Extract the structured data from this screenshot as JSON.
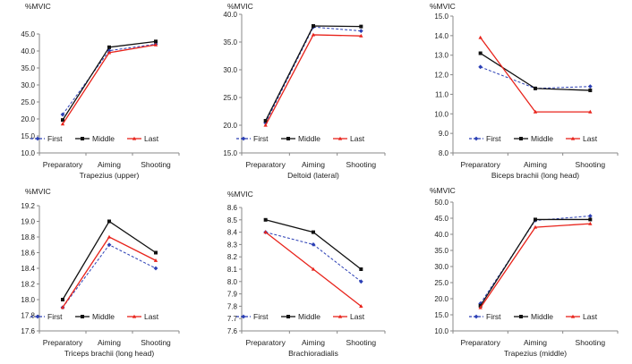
{
  "style": {
    "series_colors": {
      "First": "#2b3fb5",
      "Middle": "#111111",
      "Last": "#e8231b"
    },
    "series_dash": {
      "First": "dashed",
      "Middle": "solid",
      "Last": "solid"
    }
  },
  "chart_data": [
    {
      "type": "line",
      "title": "",
      "ylabel": "%MVIC",
      "xlabel": "Trapezius (upper)",
      "categories": [
        "Preparatory",
        "Aiming",
        "Shooting"
      ],
      "ylim": [
        10.0,
        45.0
      ],
      "yticks": [
        "10.0",
        "15.0",
        "20.0",
        "25.0",
        "30.0",
        "35.0",
        "40.0",
        "45.0"
      ],
      "legend": "bottom-right",
      "series": [
        {
          "name": "First",
          "values": [
            21.3,
            40.1,
            42.0
          ]
        },
        {
          "name": "Middle",
          "values": [
            19.7,
            41.1,
            42.8
          ]
        },
        {
          "name": "Last",
          "values": [
            18.5,
            39.5,
            41.8
          ]
        }
      ]
    },
    {
      "type": "line",
      "title": "",
      "ylabel": "%MVIC",
      "xlabel": "Deltoid (lateral)",
      "categories": [
        "Preparatory",
        "Aiming",
        "Shooting"
      ],
      "ylim": [
        15.0,
        40.0
      ],
      "yticks": [
        "15.0",
        "20.0",
        "25.0",
        "30.0",
        "35.0",
        "40.0"
      ],
      "legend": "bottom-right",
      "series": [
        {
          "name": "First",
          "values": [
            20.4,
            37.7,
            37.0
          ]
        },
        {
          "name": "Middle",
          "values": [
            20.8,
            37.9,
            37.8
          ]
        },
        {
          "name": "Last",
          "values": [
            20.0,
            36.3,
            36.1
          ]
        }
      ]
    },
    {
      "type": "line",
      "title": "",
      "ylabel": "%MVIC",
      "xlabel": "Biceps brachii (long head)",
      "categories": [
        "Preparatory",
        "Aiming",
        "Shooting"
      ],
      "ylim": [
        8.0,
        15.0
      ],
      "yticks": [
        "8.0",
        "9.0",
        "10.0",
        "11.0",
        "12.0",
        "13.0",
        "14.0",
        "15.0"
      ],
      "legend": "bottom-right",
      "series": [
        {
          "name": "First",
          "values": [
            12.4,
            11.3,
            11.4
          ]
        },
        {
          "name": "Middle",
          "values": [
            13.1,
            11.3,
            11.2
          ]
        },
        {
          "name": "Last",
          "values": [
            13.9,
            10.1,
            10.1
          ]
        }
      ]
    },
    {
      "type": "line",
      "title": "",
      "ylabel": "%MVIC",
      "xlabel": "Triceps brachii (long head)",
      "categories": [
        "Preparatory",
        "Aiming",
        "Shooting"
      ],
      "ylim": [
        17.6,
        19.2
      ],
      "yticks": [
        "17.6",
        "17.8",
        "18.0",
        "18.2",
        "18.4",
        "18.6",
        "18.8",
        "19.0",
        "19.2"
      ],
      "legend": "bottom-right",
      "series": [
        {
          "name": "First",
          "values": [
            17.9,
            18.7,
            18.4
          ]
        },
        {
          "name": "Middle",
          "values": [
            18.0,
            19.0,
            18.6
          ]
        },
        {
          "name": "Last",
          "values": [
            17.9,
            18.8,
            18.5
          ]
        }
      ]
    },
    {
      "type": "line",
      "title": "",
      "ylabel": "%MVIC",
      "xlabel": "Brachioradialis",
      "categories": [
        "Preparatory",
        "Aiming",
        "Shooting"
      ],
      "ylim": [
        7.6,
        8.6
      ],
      "yticks": [
        "7.6",
        "7.7",
        "7.8",
        "7.9",
        "8.0",
        "8.1",
        "8.2",
        "8.3",
        "8.4",
        "8.5",
        "8.6"
      ],
      "legend": "bottom-right",
      "series": [
        {
          "name": "First",
          "values": [
            8.4,
            8.3,
            8.0
          ]
        },
        {
          "name": "Middle",
          "values": [
            8.5,
            8.4,
            8.1
          ]
        },
        {
          "name": "Last",
          "values": [
            8.4,
            8.1,
            7.8
          ]
        }
      ]
    },
    {
      "type": "line",
      "title": "",
      "ylabel": "%MVIC",
      "xlabel": "Trapezius (middle)",
      "categories": [
        "Preparatory",
        "Aiming",
        "Shooting"
      ],
      "ylim": [
        10.0,
        50.0
      ],
      "yticks": [
        "10.0",
        "15.0",
        "20.0",
        "25.0",
        "30.0",
        "35.0",
        "40.0",
        "45.0",
        "50.0"
      ],
      "legend": "bottom-right",
      "series": [
        {
          "name": "First",
          "values": [
            18.5,
            44.3,
            45.7
          ]
        },
        {
          "name": "Middle",
          "values": [
            17.8,
            44.6,
            44.6
          ]
        },
        {
          "name": "Last",
          "values": [
            17.2,
            42.2,
            43.3
          ]
        }
      ]
    }
  ]
}
